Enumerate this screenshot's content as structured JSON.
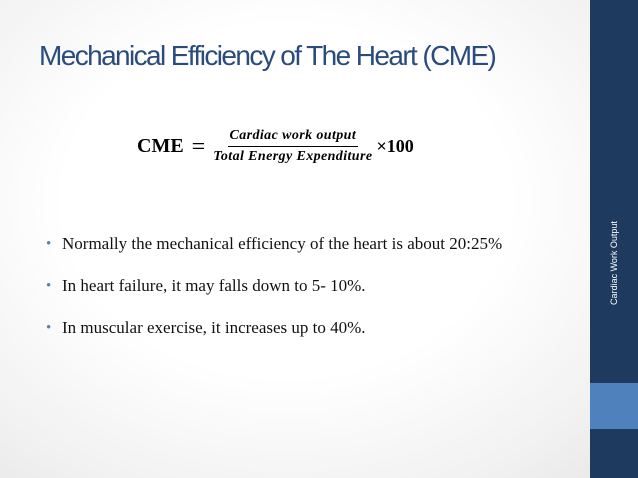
{
  "slide": {
    "title": "Mechanical Efficiency of The Heart (CME)",
    "formula": {
      "lhs": "CME",
      "equals": "=",
      "numerator": "Cardiac work output",
      "denominator": "Total Energy Expenditure",
      "multiplier": "×100"
    },
    "bullets": [
      {
        "marker": "•",
        "text": "Normally the mechanical efficiency of the heart is about 20:25%"
      },
      {
        "marker": "•",
        "text": "In heart failure, it may falls down to 5- 10%."
      },
      {
        "marker": "•",
        "text": "In muscular exercise, it increases up to 40%."
      }
    ],
    "sidebar_label": "Cardiac Work Output"
  },
  "colors": {
    "title": "#2a4c7d",
    "sidebar": "#1f3a5f",
    "sidebar_accent": "#4f81bd",
    "bullet": "#5b7fa8"
  }
}
